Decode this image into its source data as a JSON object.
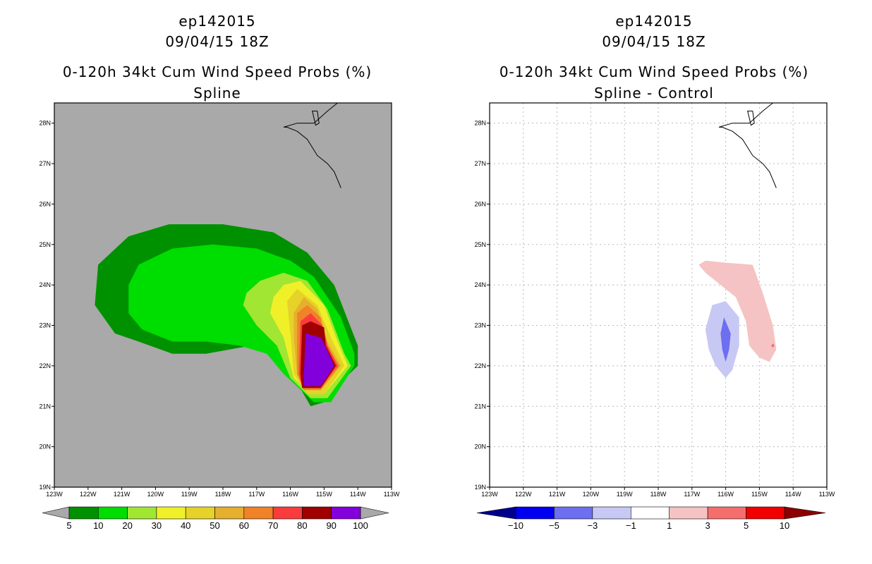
{
  "chart_data": [
    {
      "type": "contour-map",
      "title_lines": [
        "ep142015",
        "09/04/15 18Z",
        "0-120h 34kt Cum Wind Speed Probs (%)",
        "Spline"
      ],
      "lon_ticks": [
        "123W",
        "122W",
        "121W",
        "120W",
        "119W",
        "118W",
        "117W",
        "116W",
        "115W",
        "114W",
        "113W"
      ],
      "lat_ticks": [
        "19N",
        "20N",
        "21N",
        "22N",
        "23N",
        "24N",
        "25N",
        "26N",
        "27N",
        "28N"
      ],
      "lon_range": [
        -123,
        -113
      ],
      "lat_range": [
        19,
        28.5
      ],
      "background": "#a9a9a9",
      "grid": false,
      "levels": [
        5,
        10,
        20,
        30,
        40,
        50,
        60,
        70,
        80,
        90,
        100
      ],
      "level_labels": [
        "5",
        "10",
        "20",
        "30",
        "40",
        "50",
        "60",
        "70",
        "80",
        "90",
        "100"
      ],
      "colors": [
        "#009100",
        "#00dd00",
        "#a0e632",
        "#f0f028",
        "#e6d228",
        "#e6af2d",
        "#f08228",
        "#fa3c3c",
        "#a00000",
        "#8200dc"
      ],
      "fill_contours": [
        {
          "level": 5,
          "color": "#009100",
          "points": [
            [
              -121.8,
              23.5
            ],
            [
              -121.7,
              24.5
            ],
            [
              -120.8,
              25.2
            ],
            [
              -119.6,
              25.5
            ],
            [
              -118.0,
              25.5
            ],
            [
              -116.5,
              25.3
            ],
            [
              -115.5,
              24.8
            ],
            [
              -114.7,
              24.0
            ],
            [
              -114.0,
              22.5
            ],
            [
              -114.0,
              22.0
            ],
            [
              -114.5,
              21.6
            ],
            [
              -115.0,
              21.1
            ],
            [
              -115.4,
              21.0
            ],
            [
              -116.5,
              22.6
            ],
            [
              -118.5,
              22.3
            ],
            [
              -119.5,
              22.3
            ],
            [
              -120.5,
              22.6
            ],
            [
              -121.2,
              22.8
            ]
          ]
        },
        {
          "level": 10,
          "color": "#00dd00",
          "points": [
            [
              -120.8,
              24.0
            ],
            [
              -120.5,
              24.5
            ],
            [
              -119.5,
              24.9
            ],
            [
              -118.3,
              25.0
            ],
            [
              -117.0,
              24.9
            ],
            [
              -116.0,
              24.6
            ],
            [
              -115.3,
              24.2
            ],
            [
              -114.5,
              23.2
            ],
            [
              -114.1,
              22.3
            ],
            [
              -114.1,
              22.0
            ],
            [
              -114.8,
              21.1
            ],
            [
              -115.3,
              21.1
            ],
            [
              -116.2,
              21.8
            ],
            [
              -116.7,
              22.3
            ],
            [
              -117.5,
              22.5
            ],
            [
              -118.5,
              22.6
            ],
            [
              -119.5,
              22.6
            ],
            [
              -120.4,
              22.9
            ],
            [
              -120.8,
              23.3
            ]
          ]
        },
        {
          "level": 20,
          "color": "#a0e632",
          "points": [
            [
              -117.3,
              23.8
            ],
            [
              -116.9,
              24.1
            ],
            [
              -116.2,
              24.3
            ],
            [
              -115.5,
              24.1
            ],
            [
              -114.9,
              23.4
            ],
            [
              -114.4,
              22.3
            ],
            [
              -114.2,
              22.0
            ],
            [
              -114.9,
              21.2
            ],
            [
              -115.4,
              21.2
            ],
            [
              -116.0,
              21.7
            ],
            [
              -116.4,
              22.5
            ],
            [
              -117.0,
              23.0
            ],
            [
              -117.4,
              23.5
            ]
          ]
        },
        {
          "level": 30,
          "color": "#f0f028",
          "points": [
            [
              -116.5,
              23.7
            ],
            [
              -116.2,
              24.0
            ],
            [
              -115.7,
              24.1
            ],
            [
              -115.0,
              23.5
            ],
            [
              -114.6,
              22.6
            ],
            [
              -114.3,
              22.0
            ],
            [
              -115.0,
              21.3
            ],
            [
              -115.4,
              21.3
            ],
            [
              -115.9,
              21.7
            ],
            [
              -116.2,
              22.7
            ],
            [
              -116.6,
              23.3
            ]
          ]
        },
        {
          "level": 40,
          "color": "#e6d228",
          "points": [
            [
              -116.1,
              23.6
            ],
            [
              -115.8,
              23.9
            ],
            [
              -115.2,
              23.5
            ],
            [
              -114.8,
              22.7
            ],
            [
              -114.4,
              22.0
            ],
            [
              -115.0,
              21.3
            ],
            [
              -115.5,
              21.3
            ],
            [
              -115.9,
              21.8
            ],
            [
              -116.0,
              22.8
            ]
          ]
        },
        {
          "level": 50,
          "color": "#e6af2d",
          "points": [
            [
              -115.9,
              23.3
            ],
            [
              -115.6,
              23.7
            ],
            [
              -115.2,
              23.4
            ],
            [
              -114.9,
              22.6
            ],
            [
              -114.5,
              22.0
            ],
            [
              -115.1,
              21.4
            ],
            [
              -115.5,
              21.4
            ],
            [
              -115.8,
              21.8
            ],
            [
              -115.9,
              22.7
            ]
          ]
        },
        {
          "level": 60,
          "color": "#f08228",
          "points": [
            [
              -115.8,
              23.3
            ],
            [
              -115.5,
              23.5
            ],
            [
              -115.1,
              23.2
            ],
            [
              -114.9,
              22.5
            ],
            [
              -114.55,
              22.0
            ],
            [
              -115.1,
              21.4
            ],
            [
              -115.6,
              21.4
            ],
            [
              -115.8,
              21.8
            ]
          ]
        },
        {
          "level": 70,
          "color": "#fa3c3c",
          "points": [
            [
              -115.7,
              23.1
            ],
            [
              -115.4,
              23.3
            ],
            [
              -115.05,
              23.0
            ],
            [
              -114.9,
              22.5
            ],
            [
              -114.6,
              22.0
            ],
            [
              -115.1,
              21.45
            ],
            [
              -115.65,
              21.45
            ],
            [
              -115.75,
              21.8
            ]
          ]
        },
        {
          "level": 80,
          "color": "#a00000",
          "points": [
            [
              -115.65,
              23.0
            ],
            [
              -115.4,
              23.1
            ],
            [
              -115.0,
              22.95
            ],
            [
              -114.95,
              22.5
            ],
            [
              -114.65,
              22.0
            ],
            [
              -115.1,
              21.45
            ],
            [
              -115.65,
              21.45
            ],
            [
              -115.7,
              21.8
            ]
          ]
        },
        {
          "level": 90,
          "color": "#8200dc",
          "points": [
            [
              -115.55,
              22.8
            ],
            [
              -115.1,
              22.7
            ],
            [
              -114.95,
              22.45
            ],
            [
              -114.7,
              22.0
            ],
            [
              -115.1,
              21.5
            ],
            [
              -115.6,
              21.5
            ],
            [
              -115.6,
              21.8
            ]
          ]
        }
      ]
    },
    {
      "type": "contour-map",
      "title_lines": [
        "ep142015",
        "09/04/15 18Z",
        "0-120h 34kt Cum Wind Speed Probs (%)",
        "Spline - Control"
      ],
      "lon_ticks": [
        "123W",
        "122W",
        "121W",
        "120W",
        "119W",
        "118W",
        "117W",
        "116W",
        "115W",
        "114W",
        "113W"
      ],
      "lat_ticks": [
        "19N",
        "20N",
        "21N",
        "22N",
        "23N",
        "24N",
        "25N",
        "26N",
        "27N",
        "28N"
      ],
      "lon_range": [
        -123,
        -113
      ],
      "lat_range": [
        19,
        28.5
      ],
      "background": "#ffffff",
      "grid": true,
      "levels": [
        -10,
        -5,
        -3,
        -1,
        1,
        3,
        5,
        10
      ],
      "level_labels": [
        "-10",
        "-5",
        "-3",
        "-1",
        "1",
        "3",
        "5",
        "10"
      ],
      "colors": [
        "#00008c",
        "#0000f0",
        "#6e6ef0",
        "#c8c8f5",
        "#ffffff",
        "#f5c3c3",
        "#f56e6e",
        "#f00000",
        "#8c0000"
      ],
      "fill_contours": [
        {
          "level": -1,
          "color": "#c8c8f5",
          "points": [
            [
              -116.6,
              22.9
            ],
            [
              -116.4,
              23.5
            ],
            [
              -116.0,
              23.6
            ],
            [
              -115.6,
              23.2
            ],
            [
              -115.6,
              22.5
            ],
            [
              -115.8,
              21.9
            ],
            [
              -116.0,
              21.7
            ],
            [
              -116.3,
              22.0
            ],
            [
              -116.5,
              22.4
            ]
          ]
        },
        {
          "level": -3,
          "color": "#6e6ef0",
          "points": [
            [
              -116.05,
              23.2
            ],
            [
              -115.85,
              22.8
            ],
            [
              -115.9,
              22.4
            ],
            [
              -116.0,
              22.1
            ],
            [
              -116.1,
              22.4
            ],
            [
              -116.15,
              22.8
            ]
          ]
        },
        {
          "level": 1,
          "color": "#f5c3c3",
          "points": [
            [
              -116.8,
              24.5
            ],
            [
              -116.6,
              24.6
            ],
            [
              -116.0,
              24.55
            ],
            [
              -115.2,
              24.5
            ],
            [
              -114.9,
              23.8
            ],
            [
              -114.6,
              23.0
            ],
            [
              -114.5,
              22.4
            ],
            [
              -114.7,
              22.1
            ],
            [
              -115.0,
              22.2
            ],
            [
              -115.3,
              22.5
            ],
            [
              -115.4,
              23.1
            ],
            [
              -115.7,
              23.7
            ],
            [
              -116.6,
              24.3
            ]
          ]
        },
        {
          "level": 3,
          "color": "#f56e6e",
          "points": [
            [
              -114.6,
              22.55
            ],
            [
              -114.55,
              22.5
            ],
            [
              -114.6,
              22.45
            ],
            [
              -114.65,
              22.5
            ]
          ]
        }
      ]
    }
  ]
}
